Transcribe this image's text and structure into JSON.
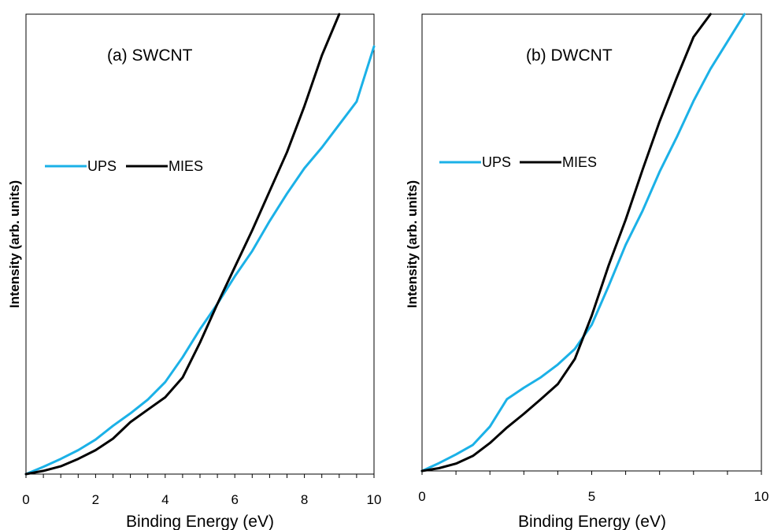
{
  "chart_data": [
    {
      "type": "line",
      "title": "(a) SWCNT",
      "xlabel": "Binding Energy (eV)",
      "ylabel": "Intensity (arb. units)",
      "xlim": [
        0,
        10
      ],
      "ylim": [
        0,
        100
      ],
      "xticks": [
        "0",
        "2",
        "4",
        "6",
        "8",
        "10"
      ],
      "grid": false,
      "legend": "center-left",
      "series": [
        {
          "name": "UPS",
          "color": "#1bb1e7",
          "x": [
            0,
            0.5,
            1,
            1.5,
            2,
            2.5,
            3,
            3.5,
            4,
            4.5,
            5,
            5.5,
            6,
            6.5,
            7,
            7.5,
            8,
            8.5,
            9,
            9.5,
            10
          ],
          "y": [
            0,
            1.6,
            3.3,
            5.2,
            7.5,
            10.5,
            13.2,
            16.2,
            20,
            25.4,
            31.5,
            37,
            43,
            48.5,
            55,
            61,
            66.5,
            71,
            76,
            81,
            93
          ]
        },
        {
          "name": "MIES",
          "color": "#000000",
          "x": [
            0,
            0.5,
            1,
            1.5,
            2,
            2.5,
            3,
            3.5,
            4,
            4.5,
            5,
            5.5,
            6,
            6.5,
            7,
            7.5,
            8,
            8.5,
            9
          ],
          "y": [
            0,
            0.7,
            1.7,
            3.3,
            5.2,
            7.7,
            11.3,
            14,
            16.7,
            21,
            28.6,
            37,
            45,
            53,
            61.5,
            70,
            80,
            91,
            100
          ]
        }
      ]
    },
    {
      "type": "line",
      "title": "(b) DWCNT",
      "xlabel": "Binding Energy (eV)",
      "ylabel": "Intensity (arb. units)",
      "xlim": [
        0,
        10
      ],
      "ylim": [
        0,
        100
      ],
      "xticks": [
        "0",
        "5",
        "10"
      ],
      "grid": false,
      "legend": "center-left",
      "series": [
        {
          "name": "UPS",
          "color": "#1bb1e7",
          "x": [
            0,
            0.5,
            1,
            1.5,
            2,
            2.5,
            3,
            3.5,
            4,
            4.5,
            5,
            5.5,
            6,
            6.5,
            7,
            7.5,
            8,
            8.5,
            9,
            9.5
          ],
          "y": [
            0,
            1.7,
            3.6,
            5.7,
            9.7,
            15.7,
            18.2,
            20.5,
            23.3,
            26.7,
            32,
            40.5,
            49.5,
            57,
            65.5,
            73,
            81,
            88,
            94,
            100
          ]
        },
        {
          "name": "MIES",
          "color": "#000000",
          "x": [
            0,
            0.5,
            1,
            1.5,
            2,
            2.5,
            3,
            3.5,
            4,
            4.5,
            5,
            5.5,
            6,
            6.5,
            7,
            7.5,
            8,
            8.5
          ],
          "y": [
            0,
            0.6,
            1.6,
            3.3,
            6.1,
            9.5,
            12.5,
            15.7,
            19,
            24.5,
            34,
            45,
            55,
            66,
            76.5,
            86,
            95,
            100
          ]
        }
      ]
    }
  ]
}
